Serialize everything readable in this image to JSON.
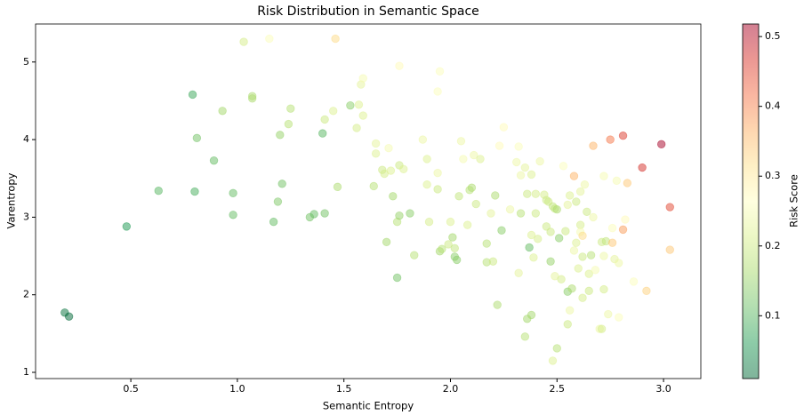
{
  "chart_data": {
    "type": "scatter",
    "title": "Risk Distribution in Semantic Space",
    "x_label": "Semantic Entropy",
    "y_label": "Varentropy",
    "xlim": [
      0.053,
      3.175
    ],
    "ylim": [
      0.92,
      5.49
    ],
    "xticks": [
      0.5,
      {
        "value": 1,
        "label": "1.0"
      },
      1.5,
      {
        "value": 2,
        "label": "2.0"
      },
      2.5,
      {
        "value": 3,
        "label": "3.0"
      }
    ],
    "yticks": [
      1,
      2,
      3,
      4,
      5
    ],
    "colormap": "RdYlGn_r",
    "alpha": 0.5,
    "colorbar": {
      "label": "Risk Score",
      "clim": [
        0.01,
        0.518
      ],
      "ticks": [
        0.1,
        0.2,
        0.3,
        0.4,
        0.5
      ]
    },
    "series": [
      {
        "name": null,
        "x": [
          0.19,
          0.21,
          0.48,
          0.63,
          0.79,
          0.8,
          0.81,
          0.89,
          0.93,
          0.98,
          0.98,
          1.03,
          1.07,
          1.07,
          1.15,
          1.17,
          1.19,
          1.2,
          1.21,
          1.24,
          1.25,
          1.34,
          1.36,
          1.4,
          1.41,
          1.41,
          1.45,
          1.46,
          1.47,
          1.53,
          1.56,
          1.57,
          1.58,
          1.59,
          1.59,
          1.64,
          1.65,
          1.65,
          1.68,
          1.69,
          1.7,
          1.71,
          1.72,
          1.73,
          1.75,
          1.75,
          1.76,
          1.76,
          1.76,
          1.78,
          1.81,
          1.83,
          1.87,
          1.89,
          1.89,
          1.9,
          1.94,
          1.94,
          1.94,
          1.95,
          1.95,
          1.96,
          1.99,
          2.0,
          2.01,
          2.02,
          2.02,
          2.03,
          2.04,
          2.05,
          2.06,
          2.08,
          2.09,
          2.1,
          2.11,
          2.12,
          2.14,
          2.17,
          2.17,
          2.19,
          2.2,
          2.21,
          2.22,
          2.23,
          2.24,
          2.25,
          2.28,
          2.31,
          2.32,
          2.32,
          2.33,
          2.33,
          2.35,
          2.35,
          2.36,
          2.36,
          2.37,
          2.38,
          2.38,
          2.38,
          2.39,
          2.4,
          2.4,
          2.41,
          2.42,
          2.44,
          2.45,
          2.45,
          2.46,
          2.47,
          2.47,
          2.48,
          2.48,
          2.49,
          2.49,
          2.5,
          2.5,
          2.51,
          2.52,
          2.53,
          2.54,
          2.55,
          2.55,
          2.55,
          2.56,
          2.56,
          2.57,
          2.58,
          2.58,
          2.59,
          2.59,
          2.6,
          2.61,
          2.61,
          2.61,
          2.62,
          2.62,
          2.62,
          2.63,
          2.64,
          2.65,
          2.65,
          2.66,
          2.67,
          2.67,
          2.68,
          2.7,
          2.71,
          2.71,
          2.72,
          2.72,
          2.72,
          2.73,
          2.74,
          2.75,
          2.76,
          2.76,
          2.77,
          2.78,
          2.79,
          2.79,
          2.81,
          2.81,
          2.82,
          2.83,
          2.86,
          2.9,
          2.92,
          2.99,
          3.03,
          3.03
        ],
        "values": [
          1.77,
          1.72,
          2.88,
          3.34,
          4.58,
          3.33,
          4.02,
          3.73,
          4.37,
          3.31,
          3.03,
          5.26,
          4.56,
          4.53,
          5.3,
          2.94,
          3.2,
          4.06,
          3.43,
          4.2,
          4.4,
          3.0,
          3.04,
          4.08,
          3.05,
          4.26,
          4.37,
          5.3,
          3.39,
          4.44,
          4.15,
          4.45,
          4.71,
          4.79,
          4.31,
          3.4,
          3.95,
          3.82,
          3.61,
          3.56,
          2.68,
          3.89,
          3.6,
          3.27,
          2.94,
          2.22,
          4.95,
          3.02,
          3.67,
          3.62,
          3.05,
          2.51,
          4.0,
          3.75,
          3.42,
          2.94,
          4.62,
          3.36,
          3.57,
          4.88,
          2.56,
          2.59,
          2.65,
          2.94,
          2.74,
          2.6,
          2.49,
          2.45,
          3.27,
          3.98,
          3.75,
          2.9,
          3.35,
          3.38,
          3.8,
          3.17,
          3.75,
          2.66,
          2.42,
          3.05,
          2.43,
          3.28,
          1.87,
          3.92,
          2.83,
          4.16,
          3.1,
          3.71,
          3.91,
          2.28,
          3.54,
          3.05,
          3.64,
          1.46,
          1.69,
          3.3,
          2.61,
          3.55,
          1.74,
          2.77,
          2.48,
          3.3,
          3.05,
          2.72,
          3.72,
          3.29,
          3.22,
          2.88,
          3.2,
          2.81,
          2.43,
          1.15,
          3.14,
          3.11,
          2.24,
          1.31,
          3.1,
          2.73,
          2.2,
          3.66,
          2.82,
          2.04,
          3.16,
          1.62,
          1.8,
          3.28,
          2.08,
          3.53,
          2.57,
          2.67,
          3.2,
          2.34,
          2.9,
          3.33,
          2.81,
          2.76,
          1.96,
          2.49,
          3.42,
          3.07,
          2.05,
          2.27,
          2.51,
          3.92,
          3.0,
          2.32,
          1.56,
          1.56,
          2.68,
          2.5,
          2.07,
          3.53,
          2.69,
          1.75,
          4.0,
          2.67,
          2.86,
          2.46,
          3.47,
          2.41,
          1.71,
          4.05,
          2.84,
          2.97,
          3.44,
          2.17,
          3.64,
          2.05,
          3.94,
          3.13,
          2.58
        ],
        "risk": [
          0.02,
          0.01,
          0.06,
          0.1,
          0.08,
          0.09,
          0.12,
          0.11,
          0.16,
          0.11,
          0.11,
          0.21,
          0.17,
          0.17,
          0.26,
          0.11,
          0.13,
          0.15,
          0.12,
          0.18,
          0.18,
          0.12,
          0.11,
          0.1,
          0.12,
          0.2,
          0.22,
          0.32,
          0.17,
          0.14,
          0.21,
          0.22,
          0.23,
          0.25,
          0.22,
          0.18,
          0.23,
          0.22,
          0.2,
          0.21,
          0.16,
          0.25,
          0.22,
          0.16,
          0.18,
          0.12,
          0.27,
          0.15,
          0.2,
          0.22,
          0.14,
          0.18,
          0.24,
          0.22,
          0.22,
          0.21,
          0.26,
          0.2,
          0.24,
          0.26,
          0.16,
          0.18,
          0.2,
          0.22,
          0.16,
          0.19,
          0.14,
          0.14,
          0.19,
          0.24,
          0.25,
          0.22,
          0.18,
          0.17,
          0.24,
          0.2,
          0.22,
          0.18,
          0.18,
          0.23,
          0.2,
          0.17,
          0.17,
          0.27,
          0.14,
          0.27,
          0.24,
          0.24,
          0.26,
          0.23,
          0.24,
          0.18,
          0.23,
          0.18,
          0.16,
          0.2,
          0.11,
          0.22,
          0.16,
          0.22,
          0.22,
          0.21,
          0.2,
          0.21,
          0.24,
          0.21,
          0.2,
          0.2,
          0.2,
          0.2,
          0.15,
          0.22,
          0.19,
          0.19,
          0.23,
          0.18,
          0.17,
          0.14,
          0.21,
          0.26,
          0.2,
          0.14,
          0.23,
          0.2,
          0.24,
          0.22,
          0.17,
          0.36,
          0.24,
          0.22,
          0.2,
          0.22,
          0.21,
          0.23,
          0.25,
          0.32,
          0.21,
          0.2,
          0.24,
          0.2,
          0.2,
          0.22,
          0.18,
          0.36,
          0.24,
          0.25,
          0.24,
          0.21,
          0.2,
          0.24,
          0.21,
          0.25,
          0.19,
          0.24,
          0.41,
          0.34,
          0.26,
          0.23,
          0.25,
          0.24,
          0.26,
          0.46,
          0.38,
          0.27,
          0.34,
          0.26,
          0.47,
          0.33,
          0.52,
          0.45,
          0.34
        ]
      }
    ]
  }
}
